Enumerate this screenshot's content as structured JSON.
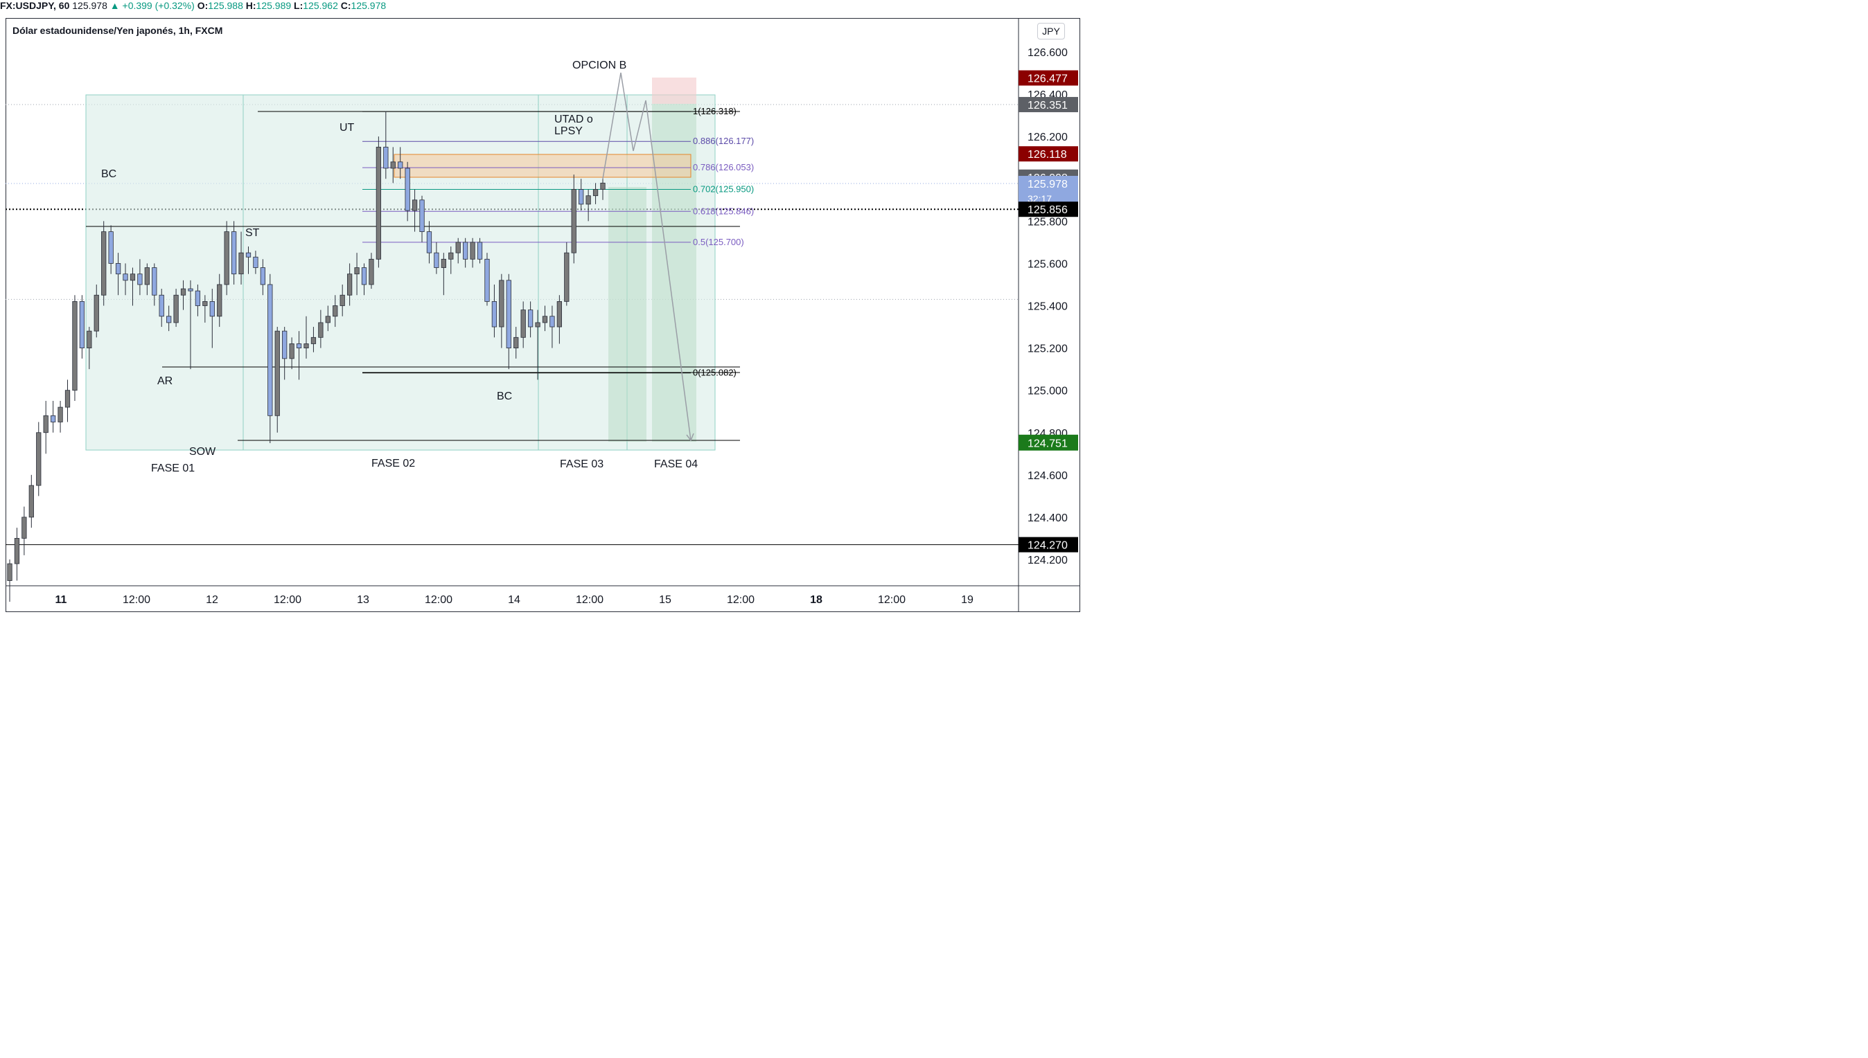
{
  "header": {
    "symbol": "FX:USDJPY, 60",
    "last": "125.978",
    "change": "▲ +0.399 (+0.32%)",
    "o_label": "O:",
    "o_value": "125.988",
    "h_label": "H:",
    "h_value": "125.989",
    "l_label": "L:",
    "l_value": "125.962",
    "c_label": "C:",
    "c_value": "125.978"
  },
  "legend": {
    "title": "Dólar estadounidense/Yen japonés, 1h, FXCM"
  },
  "currency_button": "JPY",
  "colors": {
    "up": "#089981",
    "bull": "#8fa8e0",
    "bear": "#7a7a7a",
    "zone": "#d9ece8",
    "zone_border": "#8fd1c4"
  },
  "chart_data": {
    "type": "candlestick",
    "y_axis": {
      "min": 124.1,
      "max": 126.7,
      "ticks": [
        "126.600",
        "126.400",
        "126.200",
        "125.800",
        "125.600",
        "125.400",
        "125.200",
        "125.000",
        "124.800",
        "124.600",
        "124.400",
        "124.200"
      ]
    },
    "x_axis": {
      "ticks": [
        {
          "label": "11",
          "bold": true,
          "hours": 0
        },
        {
          "label": "12:00",
          "hours": 12
        },
        {
          "label": "12",
          "hours": 24
        },
        {
          "label": "12:00",
          "hours": 36
        },
        {
          "label": "13",
          "hours": 48
        },
        {
          "label": "12:00",
          "hours": 60
        },
        {
          "label": "14",
          "hours": 72
        },
        {
          "label": "12:00",
          "hours": 84
        },
        {
          "label": "15",
          "hours": 96
        },
        {
          "label": "12:00",
          "hours": 108
        },
        {
          "label": "18",
          "bold": true,
          "hours": 120
        },
        {
          "label": "12:00",
          "hours": 132
        },
        {
          "label": "19",
          "hours": 144
        }
      ]
    },
    "price_labels": [
      {
        "value": "126.477",
        "y": 126.477,
        "bg": "#8b0000"
      },
      {
        "value": "126.351",
        "y": 126.351,
        "bg": "#5d6066"
      },
      {
        "value": "126.118",
        "y": 126.118,
        "bg": "#8b0000"
      },
      {
        "value": "126.008",
        "y": 126.008,
        "bg": "#5d6066"
      },
      {
        "value": "125.978",
        "y": 125.978,
        "bg": "#8fa8e0",
        "sub": "32:17"
      },
      {
        "value": "125.856",
        "y": 125.856,
        "bg": "#000000"
      },
      {
        "value": "124.754",
        "y": 124.754,
        "bg": "#1b7a1b"
      },
      {
        "value": "124.751",
        "y": 124.751,
        "bg": "#1b7a1b"
      },
      {
        "value": "124.270",
        "y": 124.27,
        "bg": "#000000"
      }
    ],
    "fib_levels": [
      {
        "label": "1(126.318)",
        "value": 126.318,
        "color": "#000000"
      },
      {
        "label": "0.886(126.177)",
        "value": 126.177,
        "color": "#5b4aa8"
      },
      {
        "label": "0.786(126.053)",
        "value": 126.053,
        "color": "#7a5cc0"
      },
      {
        "label": "0.702(125.950)",
        "value": 125.95,
        "color": "#089981"
      },
      {
        "label": "0.618(125.846)",
        "value": 125.846,
        "color": "#7a5cc0"
      },
      {
        "label": "0.5(125.700)",
        "value": 125.7,
        "color": "#7a5cc0"
      },
      {
        "label": "0(125.082)",
        "value": 125.082,
        "color": "#000000"
      }
    ],
    "annotations": [
      "OPCION B",
      "UTAD o",
      "LPSY",
      "UT",
      "BC",
      "ST",
      "AR",
      "SOW",
      "BC",
      "FASE 01",
      "FASE 02",
      "FASE 03",
      "FASE 04"
    ],
    "candles": [
      [
        124.1,
        124.2,
        124.0,
        124.18
      ],
      [
        124.18,
        124.35,
        124.1,
        124.3
      ],
      [
        124.3,
        124.45,
        124.22,
        124.4
      ],
      [
        124.4,
        124.6,
        124.35,
        124.55
      ],
      [
        124.55,
        124.85,
        124.5,
        124.8
      ],
      [
        124.8,
        124.95,
        124.7,
        124.88
      ],
      [
        124.88,
        124.95,
        124.8,
        124.85
      ],
      [
        124.85,
        124.95,
        124.8,
        124.92
      ],
      [
        124.92,
        125.05,
        124.85,
        125.0
      ],
      [
        125.0,
        125.45,
        124.95,
        125.42
      ],
      [
        125.42,
        125.45,
        125.15,
        125.2
      ],
      [
        125.2,
        125.3,
        125.1,
        125.28
      ],
      [
        125.28,
        125.5,
        125.25,
        125.45
      ],
      [
        125.45,
        125.8,
        125.4,
        125.75
      ],
      [
        125.75,
        125.78,
        125.55,
        125.6
      ],
      [
        125.6,
        125.65,
        125.45,
        125.55
      ],
      [
        125.55,
        125.6,
        125.45,
        125.52
      ],
      [
        125.52,
        125.58,
        125.4,
        125.55
      ],
      [
        125.55,
        125.62,
        125.45,
        125.5
      ],
      [
        125.5,
        125.6,
        125.45,
        125.58
      ],
      [
        125.58,
        125.6,
        125.4,
        125.45
      ],
      [
        125.45,
        125.48,
        125.3,
        125.35
      ],
      [
        125.35,
        125.4,
        125.28,
        125.32
      ],
      [
        125.32,
        125.48,
        125.3,
        125.45
      ],
      [
        125.45,
        125.52,
        125.38,
        125.48
      ],
      [
        125.48,
        125.52,
        125.1,
        125.47
      ],
      [
        125.47,
        125.5,
        125.35,
        125.4
      ],
      [
        125.4,
        125.45,
        125.32,
        125.42
      ],
      [
        125.42,
        125.48,
        125.2,
        125.35
      ],
      [
        125.35,
        125.55,
        125.3,
        125.5
      ],
      [
        125.5,
        125.8,
        125.45,
        125.75
      ],
      [
        125.75,
        125.8,
        125.5,
        125.55
      ],
      [
        125.55,
        125.75,
        125.5,
        125.65
      ],
      [
        125.65,
        125.68,
        125.55,
        125.63
      ],
      [
        125.63,
        125.66,
        125.55,
        125.58
      ],
      [
        125.58,
        125.62,
        125.45,
        125.5
      ],
      [
        125.5,
        125.55,
        124.75,
        124.88
      ],
      [
        124.88,
        125.3,
        124.8,
        125.28
      ],
      [
        125.28,
        125.3,
        125.05,
        125.15
      ],
      [
        125.15,
        125.25,
        125.1,
        125.22
      ],
      [
        125.22,
        125.28,
        125.05,
        125.2
      ],
      [
        125.2,
        125.35,
        125.15,
        125.22
      ],
      [
        125.22,
        125.3,
        125.18,
        125.25
      ],
      [
        125.25,
        125.38,
        125.2,
        125.32
      ],
      [
        125.32,
        125.4,
        125.28,
        125.35
      ],
      [
        125.35,
        125.45,
        125.3,
        125.4
      ],
      [
        125.4,
        125.5,
        125.35,
        125.45
      ],
      [
        125.45,
        125.6,
        125.4,
        125.55
      ],
      [
        125.55,
        125.65,
        125.45,
        125.58
      ],
      [
        125.58,
        125.6,
        125.45,
        125.5
      ],
      [
        125.5,
        125.65,
        125.48,
        125.62
      ],
      [
        125.62,
        126.2,
        125.58,
        126.15
      ],
      [
        126.15,
        126.32,
        126.0,
        126.05
      ],
      [
        126.05,
        126.15,
        125.98,
        126.08
      ],
      [
        126.08,
        126.15,
        126.0,
        126.05
      ],
      [
        126.05,
        126.08,
        125.8,
        125.85
      ],
      [
        125.85,
        125.95,
        125.75,
        125.9
      ],
      [
        125.9,
        125.92,
        125.7,
        125.75
      ],
      [
        125.75,
        125.8,
        125.6,
        125.65
      ],
      [
        125.65,
        125.7,
        125.55,
        125.58
      ],
      [
        125.58,
        125.65,
        125.45,
        125.62
      ],
      [
        125.62,
        125.68,
        125.55,
        125.65
      ],
      [
        125.65,
        125.72,
        125.6,
        125.7
      ],
      [
        125.7,
        125.72,
        125.58,
        125.62
      ],
      [
        125.62,
        125.72,
        125.58,
        125.7
      ],
      [
        125.7,
        125.72,
        125.6,
        125.62
      ],
      [
        125.62,
        125.65,
        125.4,
        125.42
      ],
      [
        125.42,
        125.5,
        125.25,
        125.3
      ],
      [
        125.3,
        125.55,
        125.2,
        125.52
      ],
      [
        125.52,
        125.55,
        125.1,
        125.2
      ],
      [
        125.2,
        125.3,
        125.15,
        125.25
      ],
      [
        125.25,
        125.42,
        125.2,
        125.38
      ],
      [
        125.38,
        125.42,
        125.25,
        125.3
      ],
      [
        125.3,
        125.38,
        125.05,
        125.32
      ],
      [
        125.32,
        125.4,
        125.28,
        125.35
      ],
      [
        125.35,
        125.4,
        125.2,
        125.3
      ],
      [
        125.3,
        125.45,
        125.22,
        125.42
      ],
      [
        125.42,
        125.7,
        125.4,
        125.65
      ],
      [
        125.65,
        126.02,
        125.6,
        125.95
      ],
      [
        125.95,
        126.0,
        125.85,
        125.88
      ],
      [
        125.88,
        125.95,
        125.8,
        125.92
      ],
      [
        125.92,
        125.98,
        125.88,
        125.95
      ],
      [
        125.95,
        126.0,
        125.9,
        125.98
      ]
    ]
  }
}
